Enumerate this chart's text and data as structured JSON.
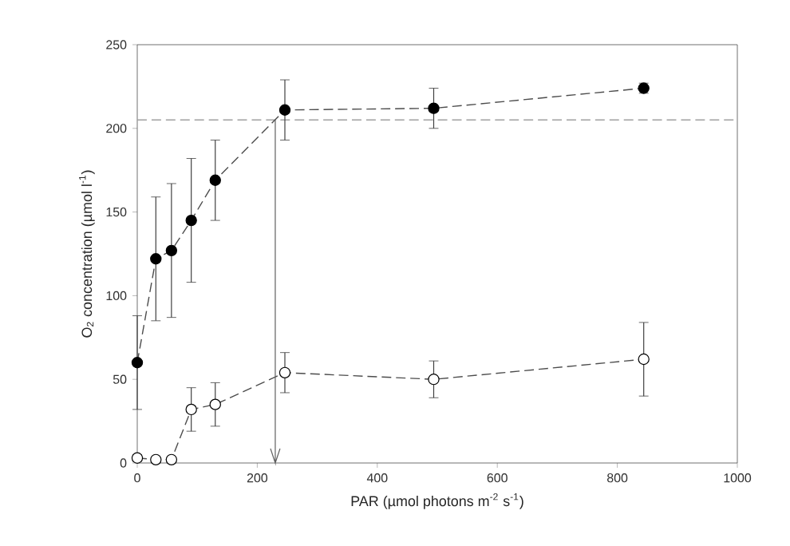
{
  "chart_data": {
    "type": "line",
    "xlabel": "PAR (µmol photons m$^{-2}$ s$^{-1}$)",
    "ylabel": "O$_{2}$ concentration (µmol l$^{-1}$)",
    "xlim": [
      0,
      1000
    ],
    "ylim": [
      0,
      250
    ],
    "xticks": [
      0,
      200,
      400,
      600,
      800,
      1000
    ],
    "yticks": [
      0,
      50,
      100,
      150,
      200,
      250
    ],
    "marker": "circle",
    "line_style": "dashed",
    "grid": false,
    "series": [
      {
        "color": "#000000",
        "x": [
          0,
          31,
          57,
          90,
          130,
          246,
          494,
          844
        ],
        "values": [
          60,
          122,
          127,
          145,
          169,
          211,
          212,
          224
        ],
        "errors": [
          28,
          37,
          40,
          37,
          24,
          18,
          12,
          3
        ]
      },
      {
        "color": "#ffffff",
        "x": [
          0,
          31,
          57,
          90,
          130,
          246,
          494,
          844
        ],
        "values": [
          3,
          2,
          2,
          32,
          35,
          54,
          50,
          62
        ],
        "errors": [
          2,
          null,
          null,
          13,
          13,
          12,
          11,
          22
        ]
      }
    ],
    "ref_lines": [
      {
        "axis": "y",
        "value": 205,
        "color": "#a0a0a0",
        "line_style": "dashed"
      },
      {
        "axis": "x",
        "value": 230,
        "color": "#606060",
        "line_style": "solid"
      }
    ]
  }
}
